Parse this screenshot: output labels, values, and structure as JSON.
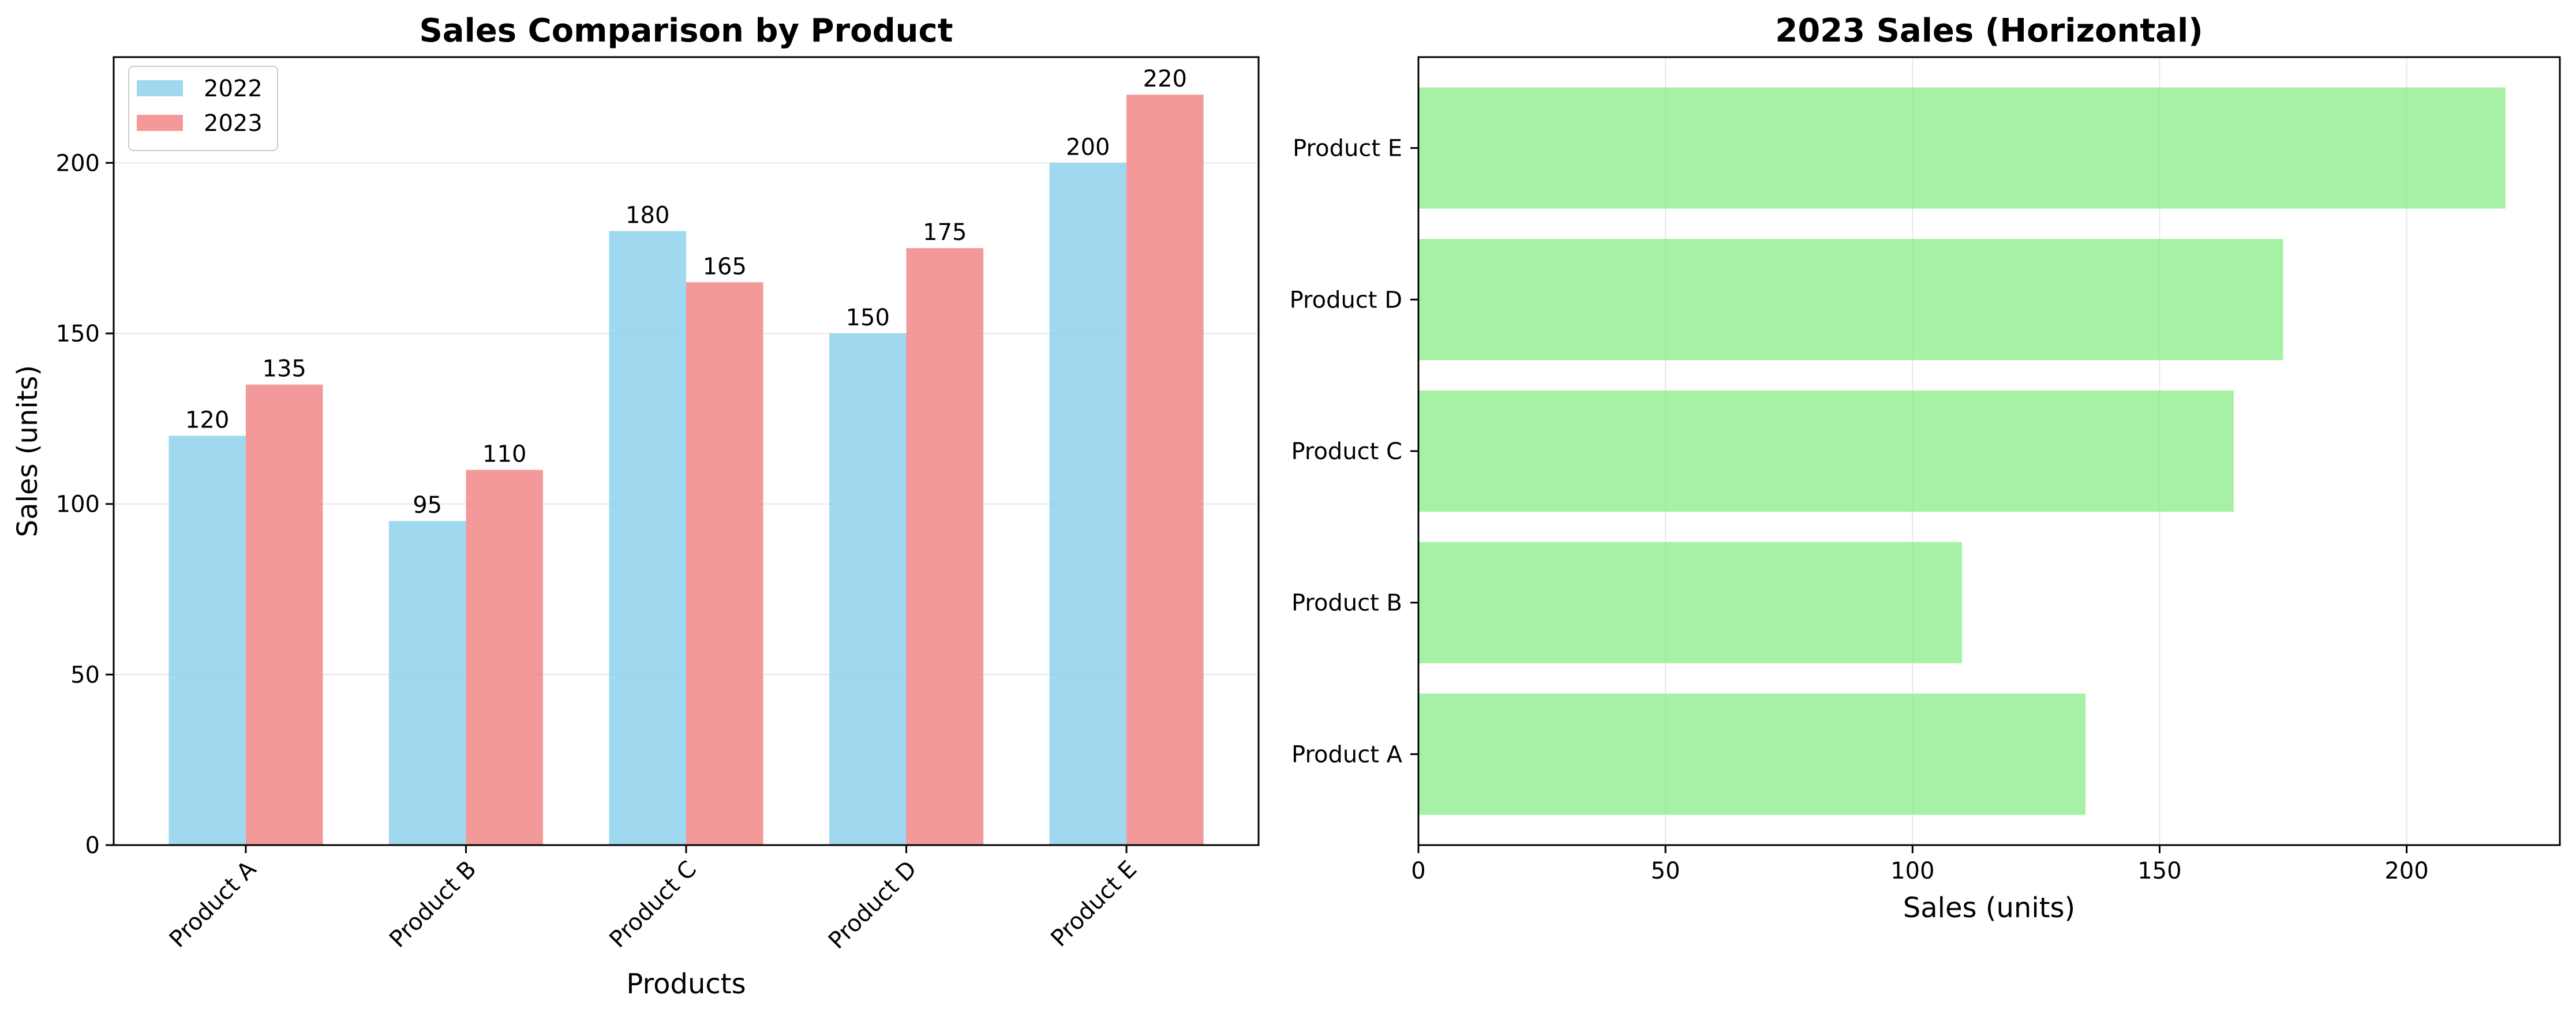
{
  "chart_data": [
    {
      "type": "bar",
      "title": "Sales Comparison by Product",
      "xlabel": "Products",
      "ylabel": "Sales (units)",
      "categories": [
        "Product A",
        "Product B",
        "Product C",
        "Product D",
        "Product E"
      ],
      "series": [
        {
          "name": "2022",
          "values": [
            120,
            95,
            180,
            150,
            200
          ],
          "color": "#87ceeb"
        },
        {
          "name": "2023",
          "values": [
            135,
            110,
            165,
            175,
            220
          ],
          "color": "#f08080"
        }
      ],
      "ylim": [
        0,
        231
      ],
      "yticks": [
        0,
        50,
        100,
        150,
        200
      ],
      "grid": "y",
      "legend": "top-left"
    },
    {
      "type": "bar",
      "orientation": "horizontal",
      "title": "2023 Sales (Horizontal)",
      "xlabel": "Sales (units)",
      "ylabel": "",
      "categories": [
        "Product A",
        "Product B",
        "Product C",
        "Product D",
        "Product E"
      ],
      "values": [
        135,
        110,
        165,
        175,
        220
      ],
      "color": "#90ee90",
      "xlim": [
        0,
        231
      ],
      "xticks": [
        0,
        50,
        100,
        150,
        200
      ],
      "grid": "x"
    }
  ]
}
